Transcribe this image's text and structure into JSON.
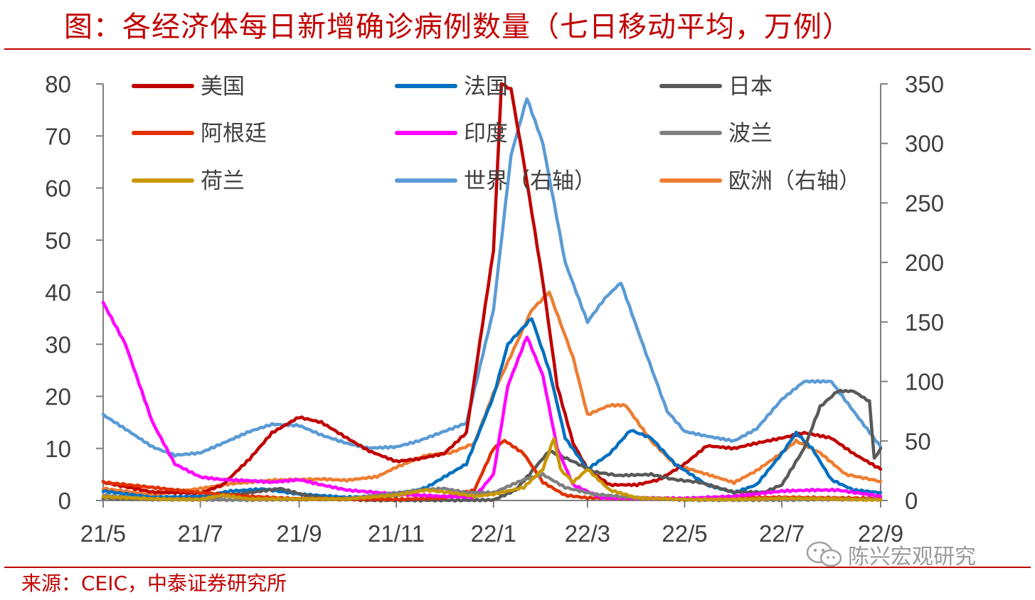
{
  "title": "图：各经济体每日新增确诊病例数量（七日移动平均，万例）",
  "source": "来源：CEIC，中泰证券研究所",
  "watermark": "陈兴宏观研究",
  "chart_data": {
    "type": "line",
    "x_ticks": [
      "21/5",
      "21/7",
      "21/9",
      "21/11",
      "22/1",
      "22/3",
      "22/5",
      "22/7",
      "22/9"
    ],
    "x_range": [
      "2021-05-01",
      "2022-09-01"
    ],
    "left_axis": {
      "ticks": [
        "0",
        "10",
        "20",
        "30",
        "40",
        "50",
        "60",
        "70",
        "80"
      ],
      "range": [
        0,
        80
      ]
    },
    "right_axis": {
      "ticks": [
        "0",
        "50",
        "100",
        "150",
        "200",
        "250",
        "300",
        "350"
      ],
      "range": [
        0,
        350
      ]
    },
    "series": [
      {
        "name": "美国",
        "color": "#c00000",
        "axis": "left",
        "points": [
          [
            "2021-05-01",
            3.5
          ],
          [
            "2021-06-01",
            1.6
          ],
          [
            "2021-07-01",
            1.4
          ],
          [
            "2021-07-15",
            3
          ],
          [
            "2021-08-01",
            8
          ],
          [
            "2021-08-15",
            13
          ],
          [
            "2021-09-01",
            16
          ],
          [
            "2021-09-15",
            15
          ],
          [
            "2021-10-01",
            12
          ],
          [
            "2021-10-15",
            9.5
          ],
          [
            "2021-11-01",
            7.5
          ],
          [
            "2021-11-15",
            8
          ],
          [
            "2021-12-01",
            9
          ],
          [
            "2021-12-15",
            13
          ],
          [
            "2022-01-01",
            48
          ],
          [
            "2022-01-06",
            80
          ],
          [
            "2022-01-12",
            79
          ],
          [
            "2022-01-20",
            65
          ],
          [
            "2022-02-01",
            42
          ],
          [
            "2022-02-10",
            22
          ],
          [
            "2022-02-20",
            11
          ],
          [
            "2022-03-01",
            6
          ],
          [
            "2022-03-15",
            3
          ],
          [
            "2022-04-01",
            3
          ],
          [
            "2022-04-15",
            4
          ],
          [
            "2022-05-01",
            7
          ],
          [
            "2022-05-15",
            10.5
          ],
          [
            "2022-06-01",
            10
          ],
          [
            "2022-06-15",
            11
          ],
          [
            "2022-07-01",
            12
          ],
          [
            "2022-07-15",
            13
          ],
          [
            "2022-08-01",
            12
          ],
          [
            "2022-08-15",
            9
          ],
          [
            "2022-09-01",
            6
          ]
        ]
      },
      {
        "name": "法国",
        "color": "#0070c0",
        "axis": "left",
        "points": [
          [
            "2021-05-01",
            1.8
          ],
          [
            "2021-06-01",
            0.6
          ],
          [
            "2021-07-01",
            0.8
          ],
          [
            "2021-07-20",
            1.8
          ],
          [
            "2021-08-10",
            2.2
          ],
          [
            "2021-09-01",
            1.2
          ],
          [
            "2021-10-01",
            0.6
          ],
          [
            "2021-11-01",
            0.9
          ],
          [
            "2021-11-20",
            2.5
          ],
          [
            "2021-12-01",
            4.5
          ],
          [
            "2021-12-15",
            7
          ],
          [
            "2022-01-01",
            20
          ],
          [
            "2022-01-10",
            30
          ],
          [
            "2022-01-25",
            35
          ],
          [
            "2022-02-05",
            25
          ],
          [
            "2022-02-15",
            12
          ],
          [
            "2022-03-01",
            6
          ],
          [
            "2022-03-15",
            9
          ],
          [
            "2022-03-28",
            13.5
          ],
          [
            "2022-04-10",
            12
          ],
          [
            "2022-04-25",
            7
          ],
          [
            "2022-05-15",
            3
          ],
          [
            "2022-06-01",
            1.5
          ],
          [
            "2022-06-15",
            3
          ],
          [
            "2022-07-01",
            9
          ],
          [
            "2022-07-10",
            13
          ],
          [
            "2022-07-20",
            10
          ],
          [
            "2022-08-01",
            4
          ],
          [
            "2022-08-15",
            2
          ],
          [
            "2022-09-01",
            1.5
          ]
        ]
      },
      {
        "name": "日本",
        "color": "#595959",
        "axis": "left",
        "points": [
          [
            "2021-05-01",
            0.5
          ],
          [
            "2021-06-01",
            0.2
          ],
          [
            "2021-07-01",
            0.3
          ],
          [
            "2021-08-01",
            1.5
          ],
          [
            "2021-08-20",
            2.3
          ],
          [
            "2021-09-05",
            1
          ],
          [
            "2021-09-20",
            0.4
          ],
          [
            "2021-10-15",
            0.05
          ],
          [
            "2021-12-15",
            0.05
          ],
          [
            "2022-01-01",
            0.1
          ],
          [
            "2022-01-15",
            2
          ],
          [
            "2022-02-05",
            9.5
          ],
          [
            "2022-02-20",
            7.5
          ],
          [
            "2022-03-05",
            5.5
          ],
          [
            "2022-03-20",
            4.8
          ],
          [
            "2022-04-10",
            5
          ],
          [
            "2022-04-25",
            4
          ],
          [
            "2022-05-10",
            3.5
          ],
          [
            "2022-06-01",
            1.6
          ],
          [
            "2022-06-20",
            1.6
          ],
          [
            "2022-07-01",
            3
          ],
          [
            "2022-07-15",
            10
          ],
          [
            "2022-07-25",
            18
          ],
          [
            "2022-08-05",
            21
          ],
          [
            "2022-08-15",
            21
          ],
          [
            "2022-08-25",
            19
          ],
          [
            "2022-08-28",
            8
          ],
          [
            "2022-09-01",
            10
          ]
        ]
      },
      {
        "name": "阿根廷",
        "color": "#e03000",
        "axis": "left",
        "points": [
          [
            "2021-05-01",
            3.5
          ],
          [
            "2021-06-01",
            2.5
          ],
          [
            "2021-07-01",
            1.5
          ],
          [
            "2021-08-01",
            0.8
          ],
          [
            "2021-09-01",
            0.3
          ],
          [
            "2021-11-01",
            0.2
          ],
          [
            "2021-12-01",
            0.5
          ],
          [
            "2021-12-20",
            2
          ],
          [
            "2022-01-01",
            10
          ],
          [
            "2022-01-08",
            11.5
          ],
          [
            "2022-01-20",
            9
          ],
          [
            "2022-02-01",
            3.5
          ],
          [
            "2022-02-15",
            1
          ],
          [
            "2022-03-01",
            0.5
          ],
          [
            "2022-05-01",
            0.3
          ],
          [
            "2022-06-01",
            0.5
          ],
          [
            "2022-07-01",
            0.6
          ],
          [
            "2022-08-01",
            0.5
          ],
          [
            "2022-09-01",
            0.4
          ]
        ]
      },
      {
        "name": "印度",
        "color": "#ff00ff",
        "axis": "left",
        "points": [
          [
            "2021-05-01",
            38
          ],
          [
            "2021-05-15",
            30
          ],
          [
            "2021-06-01",
            15
          ],
          [
            "2021-06-15",
            7
          ],
          [
            "2021-07-01",
            4.5
          ],
          [
            "2021-07-15",
            4
          ],
          [
            "2021-08-01",
            3.8
          ],
          [
            "2021-08-15",
            3.5
          ],
          [
            "2021-09-01",
            4
          ],
          [
            "2021-09-15",
            3
          ],
          [
            "2021-10-01",
            2
          ],
          [
            "2021-11-01",
            1.2
          ],
          [
            "2021-12-01",
            0.8
          ],
          [
            "2021-12-20",
            0.6
          ],
          [
            "2022-01-01",
            5
          ],
          [
            "2022-01-10",
            22
          ],
          [
            "2022-01-22",
            31.5
          ],
          [
            "2022-02-01",
            24
          ],
          [
            "2022-02-10",
            10
          ],
          [
            "2022-02-20",
            3
          ],
          [
            "2022-03-10",
            0.5
          ],
          [
            "2022-05-01",
            0.4
          ],
          [
            "2022-06-01",
            0.8
          ],
          [
            "2022-07-01",
            1.8
          ],
          [
            "2022-07-20",
            2
          ],
          [
            "2022-08-05",
            2
          ],
          [
            "2022-09-01",
            0.8
          ]
        ]
      },
      {
        "name": "波兰",
        "color": "#808080",
        "axis": "left",
        "points": [
          [
            "2021-05-01",
            1
          ],
          [
            "2021-06-01",
            0.2
          ],
          [
            "2021-08-01",
            0.1
          ],
          [
            "2021-10-01",
            0.3
          ],
          [
            "2021-10-20",
            1
          ],
          [
            "2021-11-15",
            2
          ],
          [
            "2021-12-01",
            2.3
          ],
          [
            "2021-12-15",
            1.5
          ],
          [
            "2022-01-01",
            1.5
          ],
          [
            "2022-01-20",
            4
          ],
          [
            "2022-02-01",
            5
          ],
          [
            "2022-02-15",
            2.5
          ],
          [
            "2022-03-05",
            1.2
          ],
          [
            "2022-04-01",
            0.5
          ],
          [
            "2022-05-01",
            0.1
          ],
          [
            "2022-07-01",
            0.1
          ],
          [
            "2022-08-01",
            0.2
          ],
          [
            "2022-09-01",
            0.2
          ]
        ]
      },
      {
        "name": "荷兰",
        "color": "#c89800",
        "axis": "left",
        "points": [
          [
            "2021-05-01",
            0.7
          ],
          [
            "2021-06-01",
            0.3
          ],
          [
            "2021-07-01",
            0.2
          ],
          [
            "2021-07-15",
            1
          ],
          [
            "2021-08-01",
            0.3
          ],
          [
            "2021-10-01",
            0.3
          ],
          [
            "2021-11-01",
            1
          ],
          [
            "2021-11-20",
            2
          ],
          [
            "2021-12-05",
            1.5
          ],
          [
            "2021-12-20",
            0.8
          ],
          [
            "2022-01-01",
            1.2
          ],
          [
            "2022-01-20",
            2.5
          ],
          [
            "2022-02-01",
            6
          ],
          [
            "2022-02-08",
            12
          ],
          [
            "2022-02-12",
            6
          ],
          [
            "2022-02-20",
            3.5
          ],
          [
            "2022-03-01",
            6
          ],
          [
            "2022-03-15",
            2
          ],
          [
            "2022-04-01",
            0.5
          ],
          [
            "2022-05-01",
            0.2
          ],
          [
            "2022-06-01",
            0.2
          ],
          [
            "2022-07-01",
            0.4
          ],
          [
            "2022-08-01",
            0.3
          ],
          [
            "2022-09-01",
            0.1
          ]
        ]
      },
      {
        "name": "世界（右轴）",
        "color": "#5b9bd5",
        "axis": "right",
        "points": [
          [
            "2021-05-01",
            72
          ],
          [
            "2021-05-15",
            60
          ],
          [
            "2021-06-01",
            45
          ],
          [
            "2021-06-15",
            38
          ],
          [
            "2021-07-01",
            40
          ],
          [
            "2021-07-15",
            48
          ],
          [
            "2021-08-01",
            58
          ],
          [
            "2021-08-15",
            64
          ],
          [
            "2021-09-01",
            63
          ],
          [
            "2021-09-15",
            55
          ],
          [
            "2021-10-01",
            48
          ],
          [
            "2021-10-15",
            44
          ],
          [
            "2021-11-01",
            45
          ],
          [
            "2021-11-15",
            50
          ],
          [
            "2021-12-01",
            58
          ],
          [
            "2021-12-15",
            65
          ],
          [
            "2022-01-01",
            160
          ],
          [
            "2022-01-12",
            290
          ],
          [
            "2022-01-22",
            338
          ],
          [
            "2022-02-01",
            300
          ],
          [
            "2022-02-15",
            200
          ],
          [
            "2022-03-01",
            150
          ],
          [
            "2022-03-12",
            170
          ],
          [
            "2022-03-22",
            183
          ],
          [
            "2022-04-05",
            130
          ],
          [
            "2022-04-20",
            75
          ],
          [
            "2022-05-01",
            58
          ],
          [
            "2022-05-15",
            54
          ],
          [
            "2022-06-01",
            50
          ],
          [
            "2022-06-15",
            60
          ],
          [
            "2022-07-01",
            85
          ],
          [
            "2022-07-15",
            100
          ],
          [
            "2022-08-01",
            100
          ],
          [
            "2022-08-15",
            75
          ],
          [
            "2022-09-01",
            45
          ]
        ]
      },
      {
        "name": "欧洲（右轴）",
        "color": "#ed7d31",
        "axis": "right",
        "points": [
          [
            "2021-05-01",
            10
          ],
          [
            "2021-06-01",
            5
          ],
          [
            "2021-07-01",
            10
          ],
          [
            "2021-07-20",
            14
          ],
          [
            "2021-08-15",
            17
          ],
          [
            "2021-09-15",
            18
          ],
          [
            "2021-10-01",
            17
          ],
          [
            "2021-10-20",
            20
          ],
          [
            "2021-11-01",
            28
          ],
          [
            "2021-11-20",
            38
          ],
          [
            "2021-12-05",
            40
          ],
          [
            "2021-12-20",
            48
          ],
          [
            "2022-01-01",
            90
          ],
          [
            "2022-01-12",
            122
          ],
          [
            "2022-01-25",
            160
          ],
          [
            "2022-02-05",
            175
          ],
          [
            "2022-02-20",
            120
          ],
          [
            "2022-03-01",
            72
          ],
          [
            "2022-03-15",
            80
          ],
          [
            "2022-03-25",
            80
          ],
          [
            "2022-04-10",
            50
          ],
          [
            "2022-04-25",
            30
          ],
          [
            "2022-05-15",
            22
          ],
          [
            "2022-06-01",
            15
          ],
          [
            "2022-06-15",
            25
          ],
          [
            "2022-07-01",
            40
          ],
          [
            "2022-07-10",
            50
          ],
          [
            "2022-07-25",
            40
          ],
          [
            "2022-08-10",
            22
          ],
          [
            "2022-09-01",
            16
          ]
        ]
      }
    ]
  }
}
